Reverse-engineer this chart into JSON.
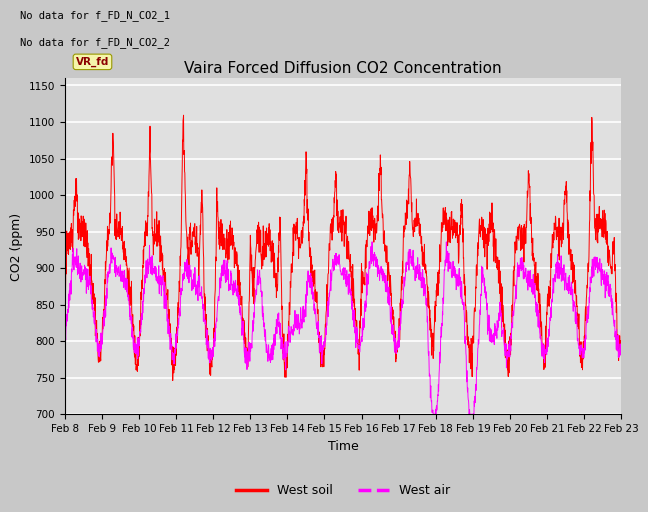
{
  "title": "Vaira Forced Diffusion CO2 Concentration",
  "xlabel": "Time",
  "ylabel": "CO2 (ppm)",
  "ylim": [
    700,
    1160
  ],
  "yticks": [
    700,
    750,
    800,
    850,
    900,
    950,
    1000,
    1050,
    1100,
    1150
  ],
  "xtick_labels": [
    "Feb 8",
    "Feb 9",
    "Feb 10",
    "Feb 11",
    "Feb 12",
    "Feb 13",
    "Feb 14",
    "Feb 15",
    "Feb 16",
    "Feb 17",
    "Feb 18",
    "Feb 19",
    "Feb 20",
    "Feb 21",
    "Feb 22",
    "Feb 23"
  ],
  "no_data_text1": "No data for f_FD_N_CO2_1",
  "no_data_text2": "No data for f_FD_N_CO2_2",
  "vr_fd_label": "VR_fd",
  "legend_labels": [
    "West soil",
    "West air"
  ],
  "soil_color": "#ff0000",
  "air_color": "#ff00ff",
  "fig_bg_color": "#c8c8c8",
  "plot_bg_color": "#e0e0e0",
  "grid_color": "#ffffff",
  "title_fontsize": 11,
  "label_fontsize": 9,
  "tick_fontsize": 7.5,
  "n_points": 2160
}
